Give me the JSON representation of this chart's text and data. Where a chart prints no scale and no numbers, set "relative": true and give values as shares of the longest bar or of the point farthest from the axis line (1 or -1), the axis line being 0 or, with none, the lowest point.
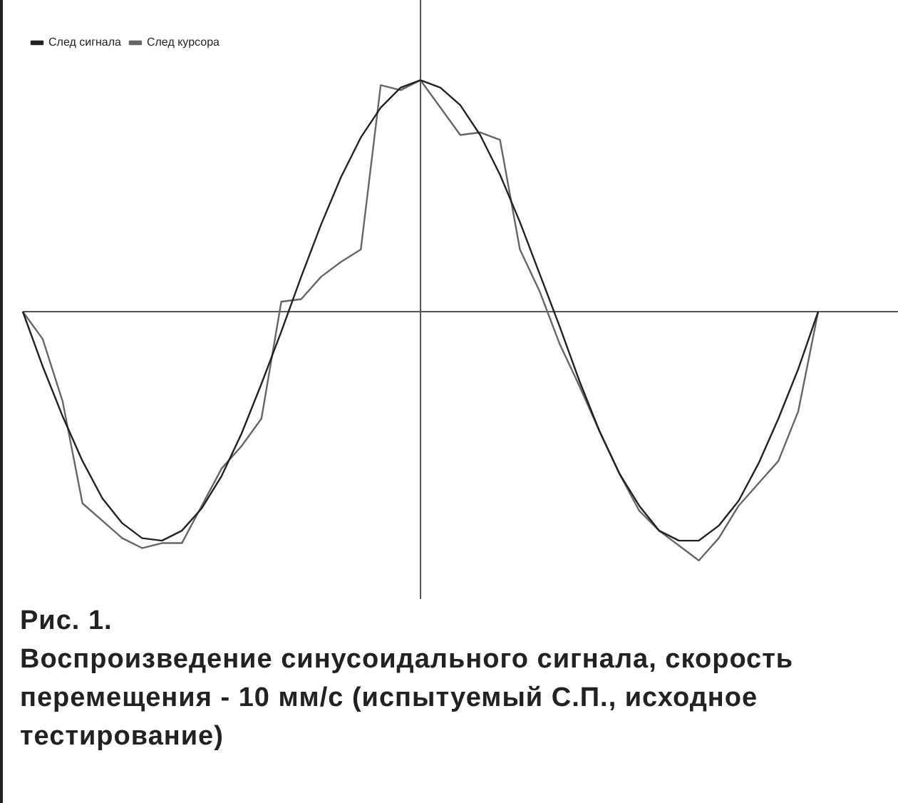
{
  "chart_data": {
    "type": "line",
    "relative": true,
    "title": "Рис. 1.",
    "subtitle": "Воспроизведение синусоидального сигнала, скорость перемещения - 10 мм/с (испытуемый С.П., исходное тестирование)",
    "legend": "top left",
    "categories": [
      null,
      null,
      null,
      null,
      null,
      null,
      null,
      null,
      null,
      null,
      null,
      null,
      null,
      null,
      null,
      null,
      null,
      null,
      null,
      null,
      null,
      null,
      null,
      null,
      null,
      null,
      null,
      null,
      null,
      null,
      null,
      null,
      null,
      null,
      null,
      null,
      null,
      null,
      null,
      null,
      null
    ],
    "series": [
      {
        "name": "След сигнала",
        "color": "#222222",
        "values": [
          0,
          -0.22,
          -0.42,
          -0.6,
          -0.75,
          -0.85,
          -0.91,
          -0.92,
          -0.88,
          -0.79,
          -0.66,
          -0.49,
          -0.29,
          -0.08,
          0.14,
          0.35,
          0.54,
          0.7,
          0.82,
          0.9,
          0.93,
          0.9,
          0.83,
          0.71,
          0.55,
          0.36,
          0.15,
          -0.06,
          -0.28,
          -0.48,
          -0.65,
          -0.78,
          -0.88,
          -0.92,
          -0.92,
          -0.86,
          -0.76,
          -0.61,
          -0.43,
          -0.23,
          0
        ]
      },
      {
        "name": "След курсора",
        "color": "#666666",
        "values": [
          0,
          -0.11,
          -0.36,
          -0.77,
          -0.84,
          -0.91,
          -0.95,
          -0.93,
          -0.93,
          -0.78,
          -0.63,
          -0.54,
          -0.43,
          0.04,
          0.05,
          0.14,
          0.2,
          0.25,
          0.91,
          0.89,
          0.93,
          0.82,
          0.71,
          0.72,
          0.69,
          0.25,
          0.08,
          -0.13,
          -0.3,
          -0.48,
          -0.65,
          -0.8,
          -0.88,
          -0.94,
          -1,
          -0.91,
          -0.78,
          -0.69,
          -0.6,
          -0.4,
          0
        ]
      }
    ]
  }
}
